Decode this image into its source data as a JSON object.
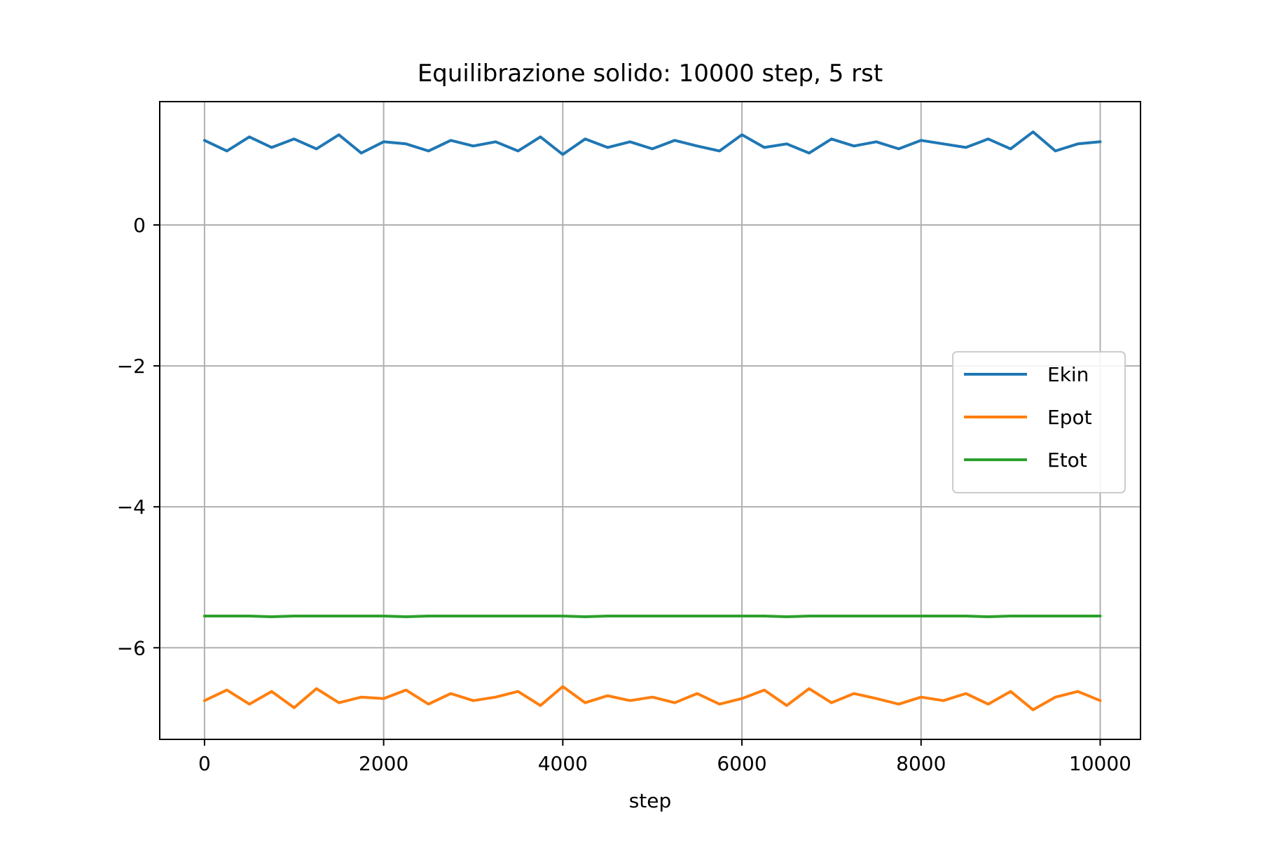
{
  "chart_data": {
    "type": "line",
    "title": "Equilibrazione solido: 10000 step, 5 rst",
    "xlabel": "step",
    "ylabel": "",
    "xlim": [
      -500,
      10450
    ],
    "ylim": [
      -7.3,
      1.75
    ],
    "xticks": [
      0,
      2000,
      4000,
      6000,
      8000,
      10000
    ],
    "xtick_labels": [
      "0",
      "2000",
      "4000",
      "6000",
      "8000",
      "10000"
    ],
    "yticks": [
      0,
      -2,
      -4,
      -6
    ],
    "ytick_labels": [
      "0",
      "−2",
      "−4",
      "−6"
    ],
    "grid": true,
    "legend_position": "center-right",
    "x": [
      0,
      250,
      500,
      750,
      1000,
      1250,
      1500,
      1750,
      2000,
      2250,
      2500,
      2750,
      3000,
      3250,
      3500,
      3750,
      4000,
      4250,
      4500,
      4750,
      5000,
      5250,
      5500,
      5750,
      6000,
      6250,
      6500,
      6750,
      7000,
      7250,
      7500,
      7750,
      8000,
      8250,
      8500,
      8750,
      9000,
      9250,
      9500,
      9750,
      10000
    ],
    "series": [
      {
        "name": "Ekin",
        "color": "#1f77b4",
        "values": [
          1.2,
          1.05,
          1.25,
          1.1,
          1.22,
          1.08,
          1.28,
          1.02,
          1.18,
          1.15,
          1.05,
          1.2,
          1.12,
          1.18,
          1.05,
          1.25,
          1.0,
          1.22,
          1.1,
          1.18,
          1.08,
          1.2,
          1.12,
          1.05,
          1.28,
          1.1,
          1.15,
          1.02,
          1.22,
          1.12,
          1.18,
          1.08,
          1.2,
          1.15,
          1.1,
          1.22,
          1.08,
          1.32,
          1.05,
          1.15,
          1.18
        ]
      },
      {
        "name": "Epot",
        "color": "#ff7f0e",
        "values": [
          -6.75,
          -6.6,
          -6.8,
          -6.62,
          -6.85,
          -6.58,
          -6.78,
          -6.7,
          -6.72,
          -6.6,
          -6.8,
          -6.65,
          -6.75,
          -6.7,
          -6.62,
          -6.82,
          -6.55,
          -6.78,
          -6.68,
          -6.75,
          -6.7,
          -6.78,
          -6.65,
          -6.8,
          -6.72,
          -6.6,
          -6.82,
          -6.58,
          -6.78,
          -6.65,
          -6.72,
          -6.8,
          -6.7,
          -6.75,
          -6.65,
          -6.8,
          -6.62,
          -6.88,
          -6.7,
          -6.62,
          -6.75
        ]
      },
      {
        "name": "Etot",
        "color": "#2ca02c",
        "values": [
          -5.55,
          -5.55,
          -5.55,
          -5.56,
          -5.55,
          -5.55,
          -5.55,
          -5.55,
          -5.55,
          -5.56,
          -5.55,
          -5.55,
          -5.55,
          -5.55,
          -5.55,
          -5.55,
          -5.55,
          -5.56,
          -5.55,
          -5.55,
          -5.55,
          -5.55,
          -5.55,
          -5.55,
          -5.55,
          -5.55,
          -5.56,
          -5.55,
          -5.55,
          -5.55,
          -5.55,
          -5.55,
          -5.55,
          -5.55,
          -5.55,
          -5.56,
          -5.55,
          -5.55,
          -5.55,
          -5.55,
          -5.55
        ]
      }
    ]
  }
}
